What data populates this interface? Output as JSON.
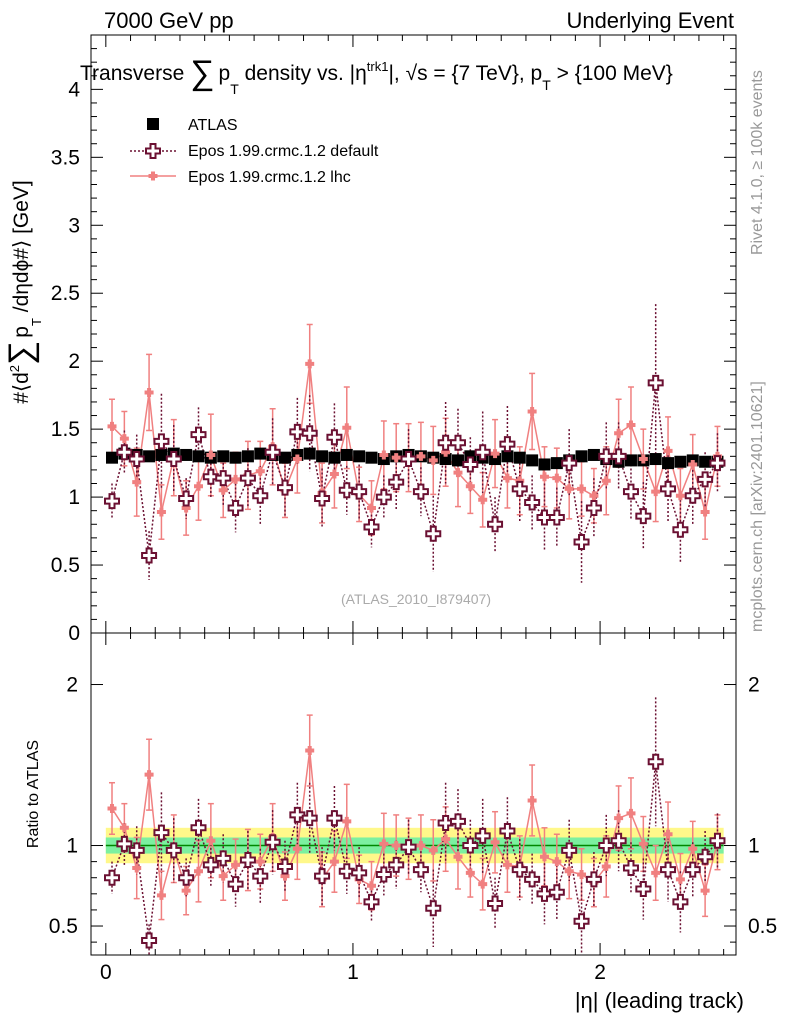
{
  "header": {
    "left": "7000 GeV pp",
    "right": "Underlying Event"
  },
  "title": {
    "prefix": "Transverse",
    "sum": "∑",
    "p": "p",
    "t_sub": "T",
    "mid": " density vs. |η",
    "trk_sup": "trk1",
    "mid2": "|, √s = {7 TeV}, p",
    "t_sub2": "T",
    "end": " > {100 MeV}"
  },
  "side_labels": {
    "rivet": "Rivet 4.1.0, ≥ 100k events",
    "mcplots": "mcplots.cern.ch [arXiv:2401.10621]"
  },
  "watermark": "(ATLAS_2010_I879407)",
  "ylabel_main": {
    "pre": "#⟨d",
    "sup2": "2",
    "sum": "∑",
    "p": "p",
    "t_sub": "T",
    "post": " /dηdϕ#⟩ [GeV]"
  },
  "ylabel_ratio": "Ratio to ATLAS",
  "xlabel": "|η| (leading track)",
  "chart_data": {
    "type": "scatter",
    "title": "Transverse ∑ pT density vs. |η trk1|, √s = {7 TeV}, pT > {100 MeV}",
    "xlim": [
      -0.06,
      2.55
    ],
    "ylim_main": [
      0,
      4.4
    ],
    "ylim_ratio": [
      0.32,
      2.32
    ],
    "xticks": [
      0,
      1,
      2
    ],
    "yticks_main": [
      0,
      0.5,
      1,
      1.5,
      2,
      2.5,
      3,
      3.5,
      4
    ],
    "yticks_main_labels": [
      "0",
      "0.5",
      "1",
      "1.5",
      "2",
      "2.5",
      "3",
      "3.5",
      "4"
    ],
    "yticks_ratio": [
      0.5,
      1,
      2
    ],
    "x": [
      0.025,
      0.075,
      0.125,
      0.175,
      0.225,
      0.275,
      0.325,
      0.375,
      0.425,
      0.475,
      0.525,
      0.575,
      0.625,
      0.675,
      0.725,
      0.775,
      0.825,
      0.875,
      0.925,
      0.975,
      1.025,
      1.075,
      1.125,
      1.175,
      1.225,
      1.275,
      1.325,
      1.375,
      1.425,
      1.475,
      1.525,
      1.575,
      1.625,
      1.675,
      1.725,
      1.775,
      1.825,
      1.875,
      1.925,
      1.975,
      2.025,
      2.075,
      2.125,
      2.175,
      2.225,
      2.275,
      2.325,
      2.375,
      2.425,
      2.475
    ],
    "series": [
      {
        "name": "ATLAS",
        "style": "square",
        "color": "#000000",
        "values": [
          1.29,
          1.32,
          1.31,
          1.3,
          1.31,
          1.32,
          1.31,
          1.3,
          1.29,
          1.3,
          1.29,
          1.3,
          1.32,
          1.31,
          1.29,
          1.31,
          1.32,
          1.3,
          1.29,
          1.31,
          1.3,
          1.29,
          1.28,
          1.3,
          1.31,
          1.3,
          1.29,
          1.28,
          1.27,
          1.3,
          1.29,
          1.28,
          1.3,
          1.29,
          1.27,
          1.24,
          1.25,
          1.27,
          1.3,
          1.31,
          1.28,
          1.26,
          1.27,
          1.27,
          1.28,
          1.25,
          1.26,
          1.27,
          1.26,
          1.26
        ],
        "ratio": [
          1,
          1,
          1,
          1,
          1,
          1,
          1,
          1,
          1,
          1,
          1,
          1,
          1,
          1,
          1,
          1,
          1,
          1,
          1,
          1,
          1,
          1,
          1,
          1,
          1,
          1,
          1,
          1,
          1,
          1,
          1,
          1,
          1,
          1,
          1,
          1,
          1,
          1,
          1,
          1,
          1,
          1,
          1,
          1,
          1,
          1,
          1,
          1,
          1,
          1
        ]
      },
      {
        "name": "Epos 1.99.crmc.1.2 default",
        "style": "cross-open-dotted",
        "color": "#6b1032",
        "values": [
          0.97,
          1.33,
          1.28,
          0.57,
          1.41,
          1.28,
          0.99,
          1.46,
          1.15,
          1.14,
          0.92,
          1.14,
          1.01,
          1.33,
          1.07,
          1.48,
          1.47,
          0.99,
          1.44,
          1.05,
          1.04,
          0.78,
          1.0,
          1.11,
          1.28,
          1.04,
          0.73,
          1.4,
          1.4,
          1.24,
          1.33,
          0.8,
          1.39,
          1.06,
          0.96,
          0.85,
          0.85,
          1.25,
          0.67,
          0.92,
          1.3,
          1.3,
          1.04,
          0.86,
          1.84,
          1.06,
          0.76,
          1.01,
          1.13,
          1.25
        ],
        "errors": [
          0.13,
          0.16,
          0.18,
          0.18,
          0.35,
          0.25,
          0.15,
          0.2,
          0.16,
          0.2,
          0.18,
          0.22,
          0.22,
          0.25,
          0.22,
          0.25,
          0.28,
          0.22,
          0.25,
          0.18,
          0.2,
          0.15,
          0.16,
          0.2,
          0.22,
          0.18,
          0.28,
          0.3,
          0.25,
          0.2,
          0.3,
          0.2,
          0.28,
          0.25,
          0.2,
          0.25,
          0.22,
          0.25,
          0.3,
          0.22,
          0.25,
          0.25,
          0.2,
          0.25,
          0.58,
          0.25,
          0.25,
          0.22,
          0.2,
          0.22
        ],
        "ratio": [
          0.8,
          1.01,
          0.97,
          0.41,
          1.08,
          0.97,
          0.8,
          1.11,
          0.88,
          0.92,
          0.76,
          0.91,
          0.81,
          1.02,
          0.87,
          1.19,
          1.17,
          0.81,
          1.17,
          0.84,
          0.83,
          0.65,
          0.82,
          0.88,
          0.99,
          0.85,
          0.61,
          1.14,
          1.15,
          1.0,
          1.06,
          0.64,
          1.09,
          0.85,
          0.79,
          0.7,
          0.71,
          0.97,
          0.53,
          0.79,
          1.0,
          1.03,
          0.86,
          0.73,
          1.52,
          0.85,
          0.65,
          0.85,
          0.93,
          1.03
        ],
        "ratio_errors": [
          0.1,
          0.13,
          0.15,
          0.1,
          0.25,
          0.2,
          0.12,
          0.18,
          0.13,
          0.15,
          0.14,
          0.18,
          0.17,
          0.2,
          0.16,
          0.2,
          0.22,
          0.18,
          0.2,
          0.14,
          0.16,
          0.12,
          0.13,
          0.15,
          0.17,
          0.14,
          0.24,
          0.25,
          0.2,
          0.16,
          0.23,
          0.16,
          0.21,
          0.19,
          0.16,
          0.19,
          0.17,
          0.19,
          0.24,
          0.17,
          0.19,
          0.19,
          0.16,
          0.19,
          0.4,
          0.2,
          0.19,
          0.17,
          0.16,
          0.17
        ]
      },
      {
        "name": "Epos 1.99.crmc.1.2 lhc",
        "style": "cross-filled-line",
        "color": "#f08080",
        "values": [
          1.52,
          1.43,
          1.11,
          1.77,
          0.89,
          1.29,
          0.92,
          1.08,
          1.31,
          1.05,
          1.13,
          1.16,
          1.19,
          1.37,
          1.05,
          1.28,
          1.98,
          1.03,
          1.17,
          1.51,
          1.02,
          0.92,
          1.31,
          1.29,
          1.29,
          1.3,
          1.27,
          1.33,
          1.18,
          1.08,
          0.98,
          1.32,
          1.14,
          1.12,
          1.63,
          1.15,
          1.14,
          1.06,
          1.06,
          1.01,
          1.12,
          1.47,
          1.53,
          1.28,
          1.04,
          1.34,
          1.01,
          1.24,
          0.89,
          1.3
        ],
        "errors": [
          0.2,
          0.2,
          0.25,
          0.28,
          0.2,
          0.28,
          0.2,
          0.25,
          0.3,
          0.2,
          0.2,
          0.25,
          0.22,
          0.28,
          0.2,
          0.25,
          0.29,
          0.22,
          0.25,
          0.3,
          0.2,
          0.2,
          0.25,
          0.25,
          0.25,
          0.25,
          0.25,
          0.25,
          0.25,
          0.2,
          0.2,
          0.25,
          0.22,
          0.25,
          0.28,
          0.22,
          0.22,
          0.22,
          0.2,
          0.2,
          0.25,
          0.25,
          0.28,
          0.22,
          0.22,
          0.25,
          0.2,
          0.22,
          0.2,
          0.22
        ],
        "ratio": [
          1.23,
          1.11,
          0.86,
          1.44,
          0.69,
          0.98,
          0.72,
          0.84,
          1.03,
          0.81,
          0.88,
          0.91,
          0.9,
          1.05,
          0.81,
          0.98,
          1.59,
          0.79,
          0.9,
          1.15,
          0.79,
          0.75,
          1.01,
          1.0,
          0.98,
          1.0,
          0.97,
          1.04,
          0.93,
          0.83,
          0.76,
          1.02,
          0.88,
          0.87,
          1.28,
          0.93,
          0.9,
          0.84,
          0.82,
          0.77,
          0.87,
          1.17,
          1.2,
          1.01,
          0.83,
          1.07,
          0.79,
          0.98,
          0.72,
          1.02
        ],
        "ratio_errors": [
          0.16,
          0.15,
          0.19,
          0.22,
          0.15,
          0.21,
          0.15,
          0.19,
          0.23,
          0.15,
          0.16,
          0.19,
          0.17,
          0.21,
          0.15,
          0.19,
          0.22,
          0.17,
          0.19,
          0.23,
          0.15,
          0.15,
          0.19,
          0.19,
          0.19,
          0.19,
          0.19,
          0.2,
          0.2,
          0.15,
          0.16,
          0.19,
          0.17,
          0.19,
          0.22,
          0.18,
          0.17,
          0.17,
          0.16,
          0.15,
          0.19,
          0.2,
          0.22,
          0.17,
          0.17,
          0.2,
          0.16,
          0.17,
          0.16,
          0.17
        ]
      }
    ],
    "bands": {
      "green": [
        0.95,
        1.05
      ],
      "yellow": [
        0.89,
        1.11
      ],
      "yellow_outer_start": 0.99
    }
  },
  "colors": {
    "green_band": "#7cf0a0",
    "yellow_band": "#fff88a",
    "ref_line": "#008800"
  }
}
